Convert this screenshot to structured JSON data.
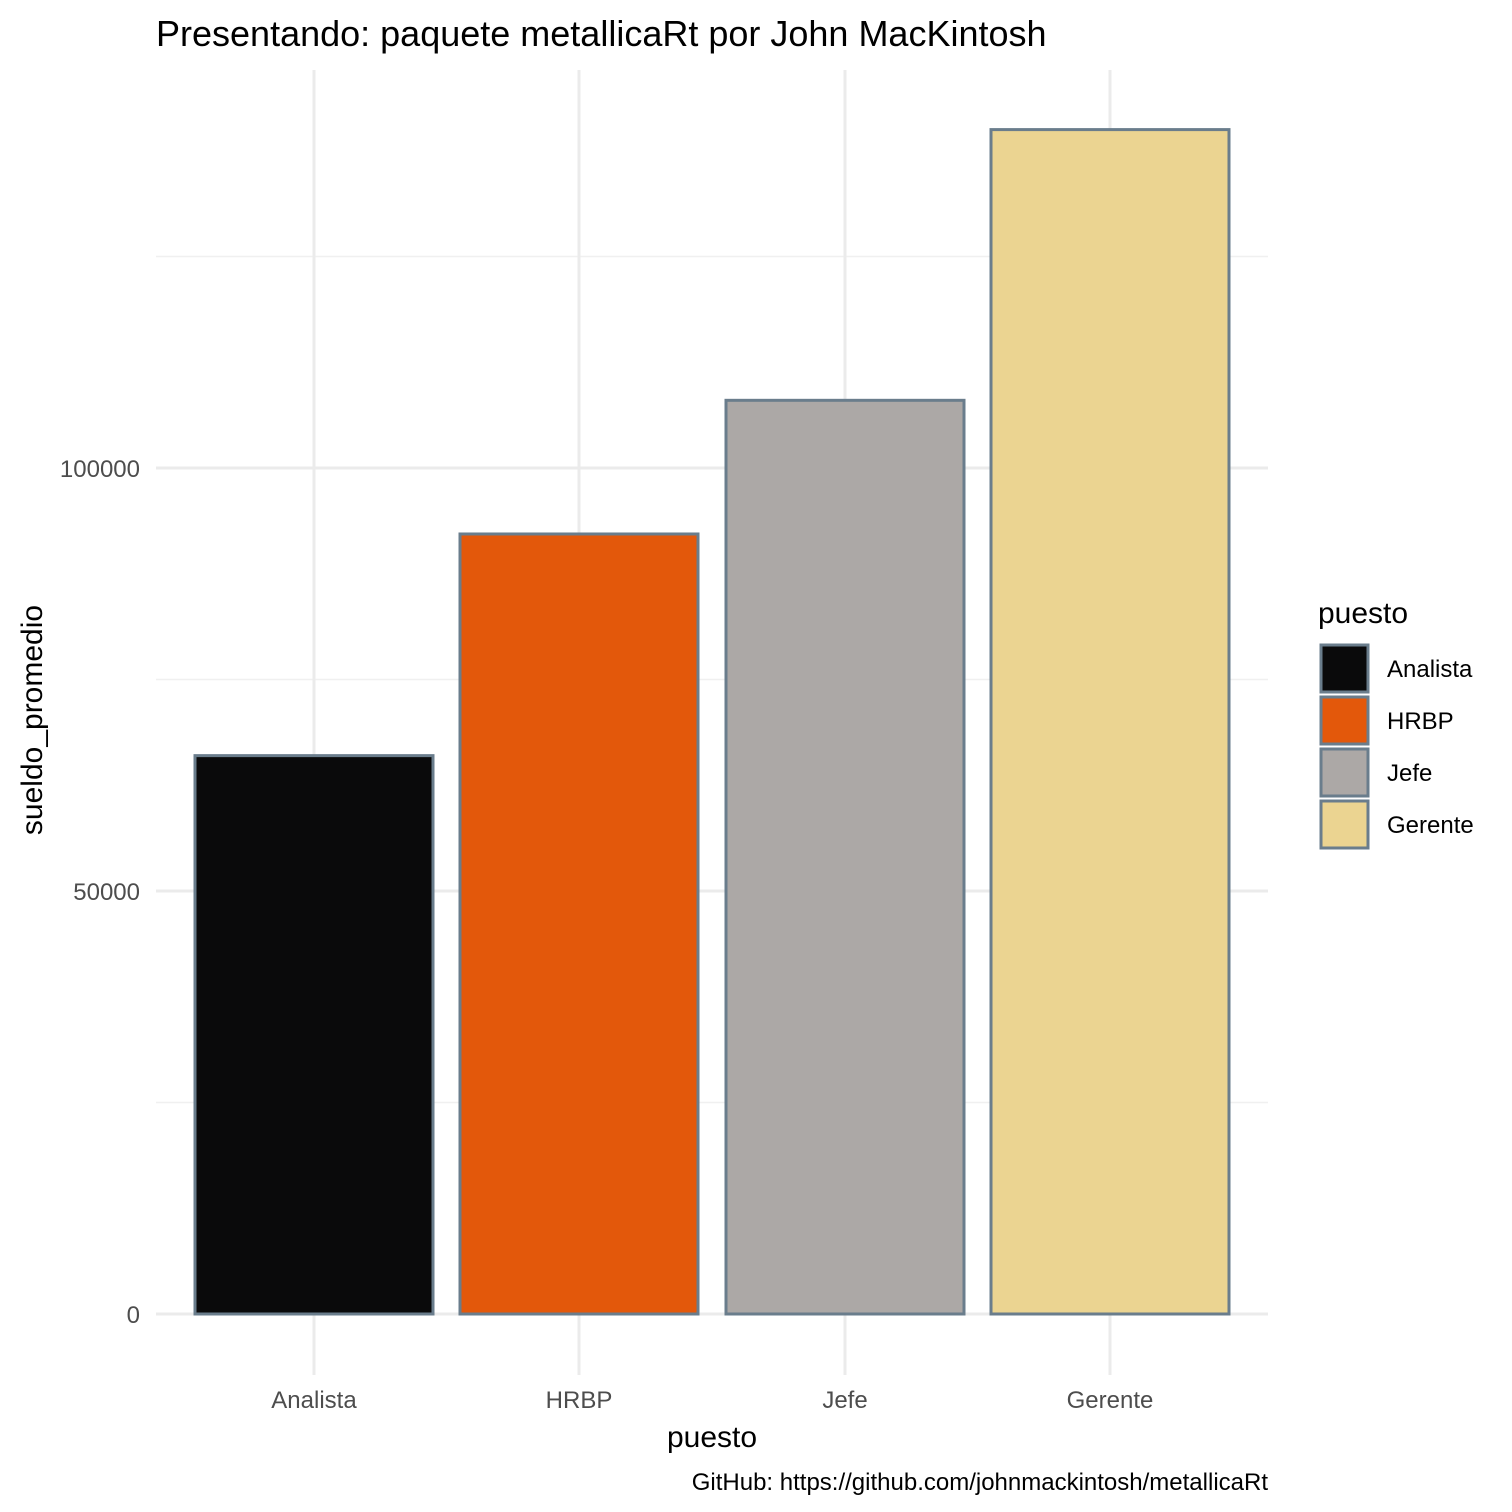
{
  "chart_data": {
    "type": "bar",
    "title": "Presentando: paquete metallicaRt por John MacKintosh",
    "xlabel": "puesto",
    "ylabel": "sueldo_promedio",
    "categories": [
      "Analista",
      "HRBP",
      "Jefe",
      "Gerente"
    ],
    "values": [
      66000,
      92200,
      108000,
      140000
    ],
    "colors": [
      "#0a0a0b",
      "#e3580b",
      "#aca8a6",
      "#ebd491"
    ],
    "bar_outline_color": "#6a7d8c",
    "ylim": [
      0,
      147000
    ],
    "yticks": [
      0,
      50000,
      100000
    ],
    "yticks_labels": [
      "0",
      "50000",
      "100000"
    ],
    "minor_yticks": [
      25000,
      75000,
      125000
    ],
    "grid": true,
    "legend": {
      "title": "puesto",
      "position": "right",
      "items": [
        "Analista",
        "HRBP",
        "Jefe",
        "Gerente"
      ]
    },
    "caption": "GitHub: https://github.com/johnmackintosh/metallicaRt"
  }
}
